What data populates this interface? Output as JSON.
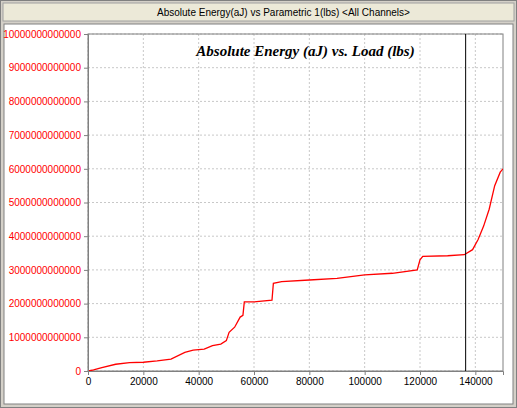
{
  "chart_data": {
    "type": "line",
    "title": "Absolute Energy(aJ) vs Parametric 1(lbs) <All Channels>",
    "subtitle": "Absolute Energy (aJ) vs. Load (lbs)",
    "color": "#ff0000",
    "grid": true,
    "xlim": [
      0,
      150000
    ],
    "ylim": [
      0,
      10000000000000
    ],
    "xticks": [
      0,
      20000,
      40000,
      60000,
      80000,
      100000,
      120000,
      140000
    ],
    "yticks": [
      0,
      1000000000000,
      2000000000000,
      3000000000000,
      4000000000000,
      5000000000000,
      6000000000000,
      7000000000000,
      8000000000000,
      9000000000000,
      10000000000000
    ],
    "x": [
      0,
      2000,
      5000,
      10000,
      15000,
      20000,
      25000,
      30000,
      35000,
      38000,
      42000,
      45000,
      48000,
      50000,
      51000,
      53000,
      55000,
      56000,
      56500,
      60000,
      66500,
      67000,
      70000,
      80000,
      90000,
      100000,
      110000,
      119000,
      120000,
      121000,
      130000,
      136000,
      139000,
      141000,
      143000,
      145000,
      147000,
      149000,
      150000
    ],
    "values": [
      0,
      30000000000,
      100000000000,
      200000000000,
      250000000000,
      260000000000,
      300000000000,
      350000000000,
      550000000000,
      620000000000,
      650000000000,
      750000000000,
      800000000000,
      900000000000,
      1150000000000,
      1300000000000,
      1600000000000,
      1650000000000,
      2050000000000,
      2050000000000,
      2100000000000,
      2600000000000,
      2650000000000,
      2700000000000,
      2750000000000,
      2850000000000,
      2900000000000,
      3000000000000,
      3300000000000,
      3400000000000,
      3420000000000,
      3450000000000,
      3600000000000,
      3900000000000,
      4300000000000,
      4800000000000,
      5500000000000,
      5900000000000,
      6000000000000
    ],
    "cursor_x": 136500
  }
}
